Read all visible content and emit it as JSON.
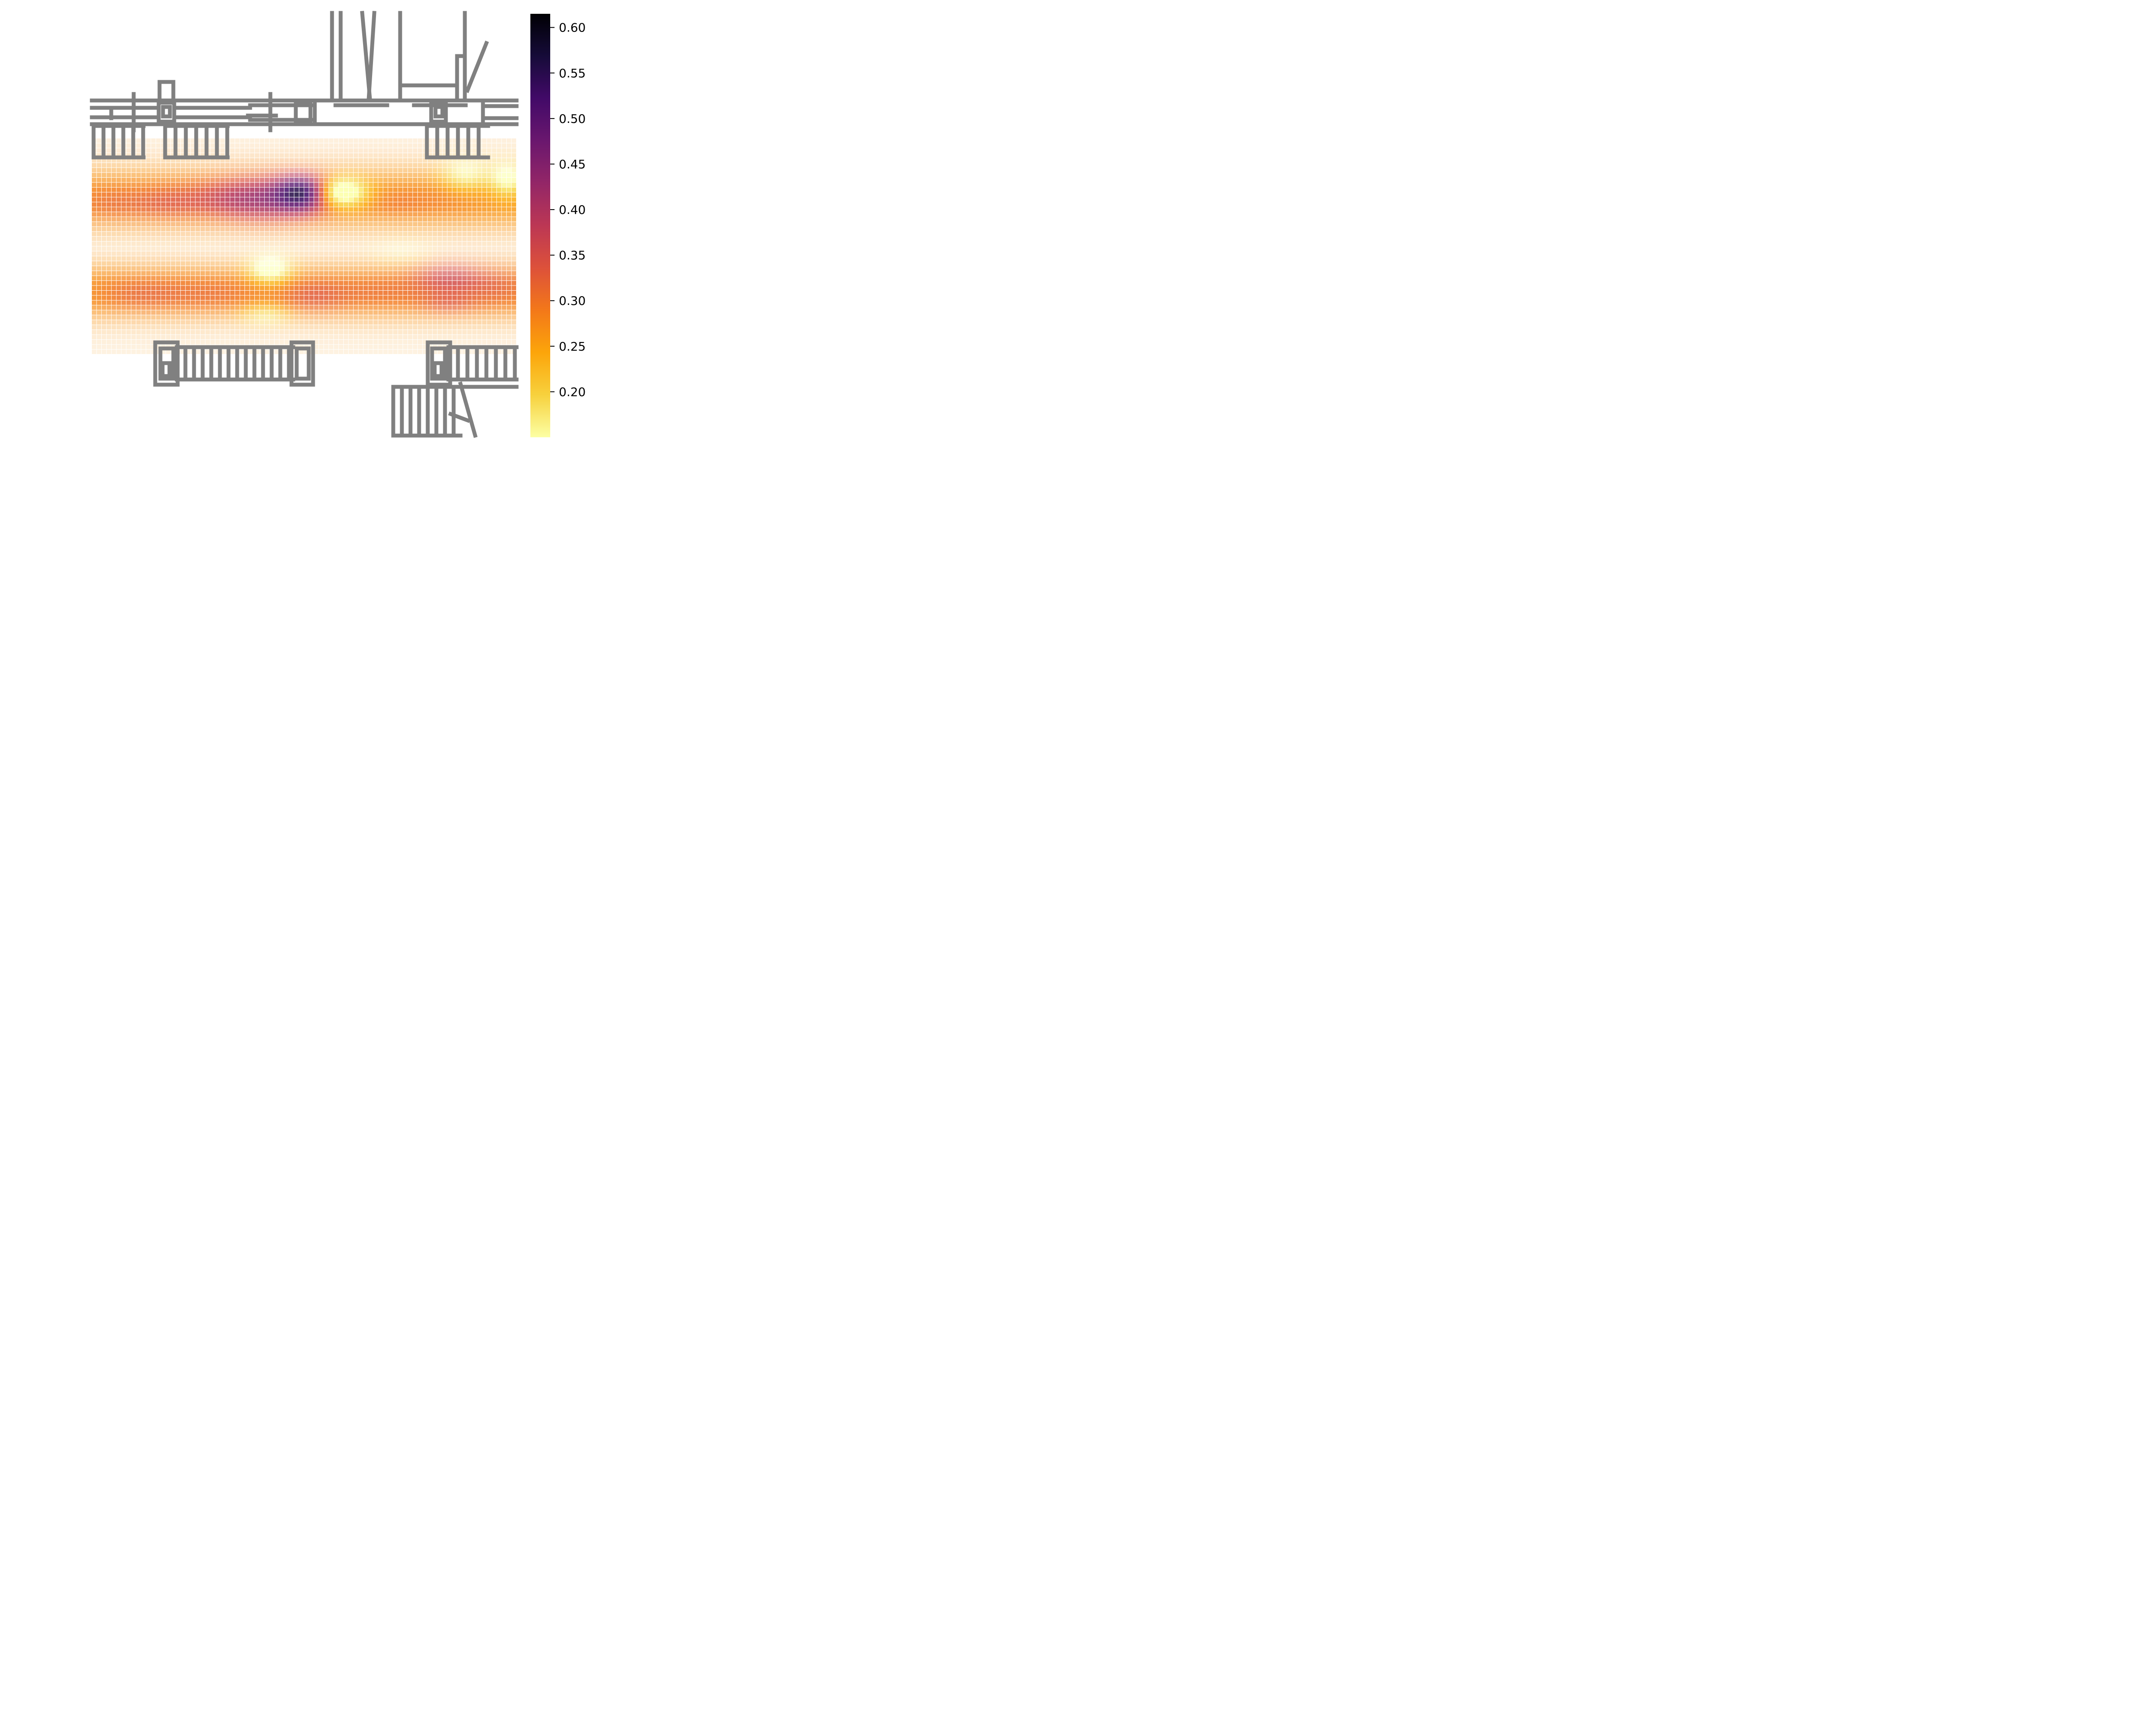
{
  "chart_data": {
    "type": "heatmap",
    "title": "",
    "xlabel": "",
    "ylabel": "",
    "colormap": "inferno_r",
    "grid": {
      "cols": 86,
      "rows": 44
    },
    "value_range": [
      0.15,
      0.615
    ],
    "background": "floor-plan line drawing (gray)",
    "blobs": [
      {
        "cx": 0.5,
        "cy": 0.25,
        "sx": 0.045,
        "sy": 0.06,
        "amp": 0.24
      },
      {
        "cx": 0.41,
        "cy": 0.28,
        "sx": 0.09,
        "sy": 0.08,
        "amp": 0.14
      },
      {
        "cx": 0.3,
        "cy": 0.28,
        "sx": 0.08,
        "sy": 0.06,
        "amp": 0.04
      },
      {
        "cx": 0.17,
        "cy": 0.3,
        "sx": 0.06,
        "sy": 0.06,
        "amp": 0.05
      },
      {
        "cx": 0.04,
        "cy": 0.3,
        "sx": 0.06,
        "sy": 0.06,
        "amp": 0.04
      },
      {
        "cx": 0.72,
        "cy": 0.3,
        "sx": 0.06,
        "sy": 0.05,
        "amp": 0.03
      },
      {
        "cx": 0.85,
        "cy": 0.28,
        "sx": 0.06,
        "sy": 0.06,
        "amp": 0.02
      },
      {
        "cx": 0.12,
        "cy": 0.72,
        "sx": 0.08,
        "sy": 0.06,
        "amp": 0.05
      },
      {
        "cx": 0.3,
        "cy": 0.72,
        "sx": 0.08,
        "sy": 0.06,
        "amp": 0.04
      },
      {
        "cx": 0.52,
        "cy": 0.73,
        "sx": 0.06,
        "sy": 0.06,
        "amp": 0.06
      },
      {
        "cx": 0.68,
        "cy": 0.71,
        "sx": 0.08,
        "sy": 0.06,
        "amp": 0.04
      },
      {
        "cx": 0.84,
        "cy": 0.64,
        "sx": 0.06,
        "sy": 0.06,
        "amp": 0.09
      },
      {
        "cx": 0.84,
        "cy": 0.77,
        "sx": 0.05,
        "sy": 0.04,
        "amp": 0.05
      },
      {
        "cx": 0.96,
        "cy": 0.69,
        "sx": 0.06,
        "sy": 0.07,
        "amp": 0.05
      }
    ],
    "low_spots": [
      {
        "cx": 0.58,
        "cy": 0.25,
        "sx": 0.045,
        "sy": 0.05,
        "amp": 0.2
      },
      {
        "cx": 0.42,
        "cy": 0.6,
        "sx": 0.035,
        "sy": 0.05,
        "amp": 0.15
      },
      {
        "cx": 0.73,
        "cy": 0.52,
        "sx": 0.05,
        "sy": 0.04,
        "amp": 0.06
      },
      {
        "cx": 0.88,
        "cy": 0.16,
        "sx": 0.04,
        "sy": 0.06,
        "amp": 0.1
      },
      {
        "cx": 0.98,
        "cy": 0.18,
        "sx": 0.03,
        "sy": 0.06,
        "amp": 0.12
      },
      {
        "cx": 0.41,
        "cy": 0.82,
        "sx": 0.04,
        "sy": 0.04,
        "amp": 0.08
      }
    ],
    "colorbar": {
      "vmin": 0.15,
      "vmax": 0.615,
      "ticks": [
        0.2,
        0.25,
        0.3,
        0.35,
        0.4,
        0.45,
        0.5,
        0.55,
        0.6
      ],
      "tick_labels": [
        "0.20",
        "0.25",
        "0.30",
        "0.35",
        "0.40",
        "0.45",
        "0.50",
        "0.55",
        "0.60"
      ]
    },
    "colors": {
      "line": "#808080",
      "stops": [
        "#fcffa4",
        "#f7d13d",
        "#fca50a",
        "#f37819",
        "#dd513a",
        "#bc3754",
        "#932667",
        "#6a176e",
        "#420a68",
        "#160b39",
        "#000004"
      ]
    }
  }
}
